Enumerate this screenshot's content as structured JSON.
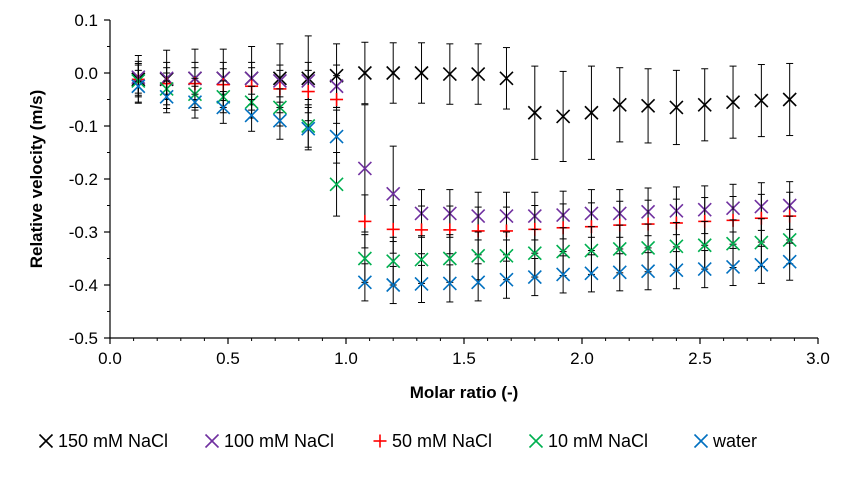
{
  "chart_data": {
    "type": "scatter",
    "title": "",
    "xlabel": "Molar ratio (-)",
    "ylabel": "Relative velocity (m/s)",
    "xlim": [
      0.0,
      3.0
    ],
    "ylim": [
      -0.5,
      0.1
    ],
    "xticks": [
      "0.0",
      "0.5",
      "1.0",
      "1.5",
      "2.0",
      "2.5",
      "3.0"
    ],
    "yticks": [
      "0.1",
      "0.0",
      "-0.1",
      "-0.2",
      "-0.3",
      "-0.4",
      "-0.5"
    ],
    "grid": false,
    "legend_position": "bottom",
    "x": [
      0.12,
      0.24,
      0.36,
      0.48,
      0.6,
      0.72,
      0.84,
      0.96,
      1.08,
      1.2,
      1.32,
      1.44,
      1.56,
      1.68,
      1.8,
      1.92,
      2.04,
      2.16,
      2.28,
      2.4,
      2.52,
      2.64,
      2.76,
      2.88
    ],
    "series": [
      {
        "name": "150 mM NaCl",
        "color": "#000000",
        "marker": "x",
        "values": [
          -0.012,
          -0.012,
          -0.01,
          -0.01,
          -0.01,
          -0.01,
          -0.01,
          -0.005,
          0.0,
          0.0,
          0.0,
          -0.002,
          -0.002,
          -0.01,
          -0.075,
          -0.082,
          -0.075,
          -0.06,
          -0.062,
          -0.065,
          -0.06,
          -0.055,
          -0.052,
          -0.05
        ],
        "error": [
          0.045,
          0.055,
          0.055,
          0.055,
          0.06,
          0.065,
          0.08,
          0.06,
          0.058,
          0.057,
          0.057,
          0.057,
          0.057,
          0.058,
          0.088,
          0.085,
          0.088,
          0.07,
          0.07,
          0.07,
          0.068,
          0.068,
          0.068,
          0.068
        ]
      },
      {
        "name": "100 mM NaCl",
        "color": "#7030a0",
        "marker": "x",
        "values": [
          -0.008,
          -0.01,
          -0.01,
          -0.01,
          -0.01,
          -0.015,
          -0.015,
          -0.025,
          -0.18,
          -0.228,
          -0.265,
          -0.265,
          -0.27,
          -0.27,
          -0.27,
          -0.268,
          -0.265,
          -0.265,
          -0.262,
          -0.26,
          -0.258,
          -0.255,
          -0.252,
          -0.25
        ],
        "error": [
          0.03,
          0.03,
          0.03,
          0.03,
          0.03,
          0.03,
          0.035,
          0.04,
          0.12,
          0.09,
          0.045,
          0.045,
          0.045,
          0.045,
          0.045,
          0.045,
          0.045,
          0.045,
          0.045,
          0.045,
          0.045,
          0.045,
          0.045,
          0.045
        ]
      },
      {
        "name": "50 mM NaCl",
        "color": "#ff0000",
        "marker": "+",
        "values": [
          -0.012,
          -0.02,
          -0.02,
          -0.022,
          -0.025,
          -0.03,
          -0.035,
          -0.05,
          -0.28,
          -0.295,
          -0.296,
          -0.296,
          -0.298,
          -0.298,
          -0.295,
          -0.292,
          -0.29,
          -0.287,
          -0.285,
          -0.283,
          -0.28,
          -0.278,
          -0.274,
          -0.27
        ],
        "error": [
          0.03,
          0.03,
          0.03,
          0.03,
          0.035,
          0.035,
          0.04,
          0.045,
          0.05,
          0.045,
          0.045,
          0.045,
          0.045,
          0.045,
          0.045,
          0.045,
          0.045,
          0.045,
          0.045,
          0.045,
          0.045,
          0.045,
          0.045,
          0.045
        ]
      },
      {
        "name": "10 mM NaCl",
        "color": "#00b050",
        "marker": "x",
        "values": [
          -0.015,
          -0.03,
          -0.04,
          -0.045,
          -0.055,
          -0.065,
          -0.1,
          -0.21,
          -0.35,
          -0.355,
          -0.352,
          -0.35,
          -0.345,
          -0.345,
          -0.34,
          -0.337,
          -0.335,
          -0.332,
          -0.33,
          -0.327,
          -0.325,
          -0.322,
          -0.32,
          -0.315
        ],
        "error": [
          0.03,
          0.03,
          0.03,
          0.03,
          0.03,
          0.035,
          0.04,
          0.06,
          0.045,
          0.045,
          0.045,
          0.045,
          0.045,
          0.045,
          0.045,
          0.045,
          0.045,
          0.045,
          0.045,
          0.045,
          0.045,
          0.045,
          0.045,
          0.045
        ]
      },
      {
        "name": "water",
        "color": "#0070c0",
        "marker": "x",
        "values": [
          -0.025,
          -0.045,
          -0.055,
          -0.065,
          -0.08,
          -0.09,
          -0.105,
          -0.12,
          -0.395,
          -0.4,
          -0.398,
          -0.397,
          -0.395,
          -0.39,
          -0.385,
          -0.38,
          -0.378,
          -0.376,
          -0.374,
          -0.372,
          -0.37,
          -0.366,
          -0.362,
          -0.356
        ],
        "error": [
          0.03,
          0.03,
          0.03,
          0.03,
          0.03,
          0.035,
          0.04,
          0.05,
          0.035,
          0.035,
          0.035,
          0.035,
          0.035,
          0.035,
          0.035,
          0.035,
          0.035,
          0.035,
          0.035,
          0.035,
          0.035,
          0.035,
          0.035,
          0.035
        ]
      }
    ]
  }
}
